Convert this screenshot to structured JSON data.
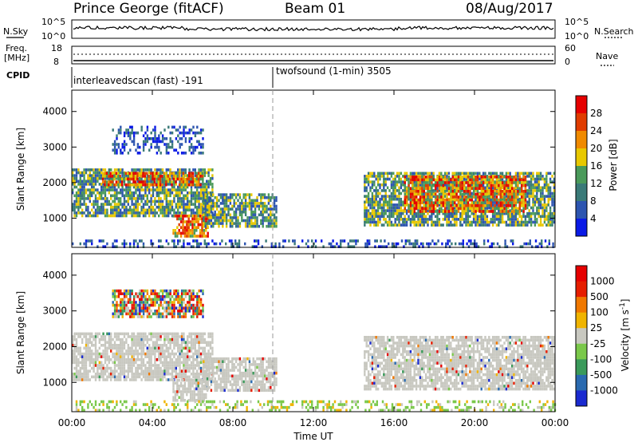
{
  "header": {
    "station": "Prince George (fitACF)",
    "beam": "Beam 01",
    "date": "08/Aug/2017"
  },
  "top_panels": {
    "nsky_label": "N.Sky",
    "nsky_ticks": [
      "10^5",
      "10^0"
    ],
    "nsearch_label": "N.Search",
    "nsearch_ticks": [
      "10^5",
      "10^0"
    ],
    "freq_label_1": "Freq.",
    "freq_label_2": "[MHz]",
    "freq_ticks": [
      "18",
      "8"
    ],
    "nave_label": "Nave",
    "nave_ticks": [
      "60",
      "0"
    ],
    "cpid_label": "CPID",
    "cpid_segments": [
      {
        "label": "interleavedscan (fast) -191",
        "start_hour": 0,
        "end_hour": 10
      },
      {
        "label": "twofsound (1-min) 3505",
        "start_hour": 10,
        "end_hour": 24
      }
    ]
  },
  "chart_data": [
    {
      "type": "heatmap",
      "name": "power",
      "ylabel": "Slant Range [km]",
      "xlabel": "",
      "xlim": [
        0,
        24
      ],
      "ylim": [
        180,
        4600
      ],
      "yticks": [
        1000,
        2000,
        3000,
        4000
      ],
      "colorbar": {
        "label": "Power [dB]",
        "ticks": [
          "4",
          "8",
          "12",
          "16",
          "20",
          "24",
          "28"
        ],
        "colors": [
          "#0a1ae6",
          "#2d55b0",
          "#3a7a78",
          "#4a9a5a",
          "#e8c800",
          "#f08a00",
          "#e03c00",
          "#e60000"
        ]
      },
      "regions": [
        {
          "t": [
            0.0,
            7.0
          ],
          "r": [
            1100,
            2400
          ],
          "level": "medium"
        },
        {
          "t": [
            1.5,
            6.5
          ],
          "r": [
            1900,
            2300
          ],
          "level": "high"
        },
        {
          "t": [
            5.0,
            6.8
          ],
          "r": [
            500,
            1100
          ],
          "level": "high"
        },
        {
          "t": [
            6.5,
            10.2
          ],
          "r": [
            800,
            1700
          ],
          "level": "medium"
        },
        {
          "t": [
            2.0,
            6.5
          ],
          "r": [
            2800,
            3600
          ],
          "level": "low"
        },
        {
          "t": [
            14.5,
            24.0
          ],
          "r": [
            800,
            2300
          ],
          "level": "medium"
        },
        {
          "t": [
            16.5,
            22.5
          ],
          "r": [
            1200,
            2200
          ],
          "level": "high"
        },
        {
          "t": [
            0.0,
            24.0
          ],
          "r": [
            180,
            400
          ],
          "level": "low"
        }
      ]
    },
    {
      "type": "heatmap",
      "name": "velocity",
      "ylabel": "Slant Range [km]",
      "xlabel": "Time UT",
      "xlim": [
        0,
        24
      ],
      "ylim": [
        180,
        4600
      ],
      "yticks": [
        1000,
        2000,
        3000,
        4000
      ],
      "xticks": [
        "00:00",
        "04:00",
        "08:00",
        "12:00",
        "16:00",
        "20:00",
        "00:00"
      ],
      "colorbar": {
        "label": "Velocity [m s^-1]",
        "ticks": [
          "1000",
          "500",
          "100",
          "25",
          "-25",
          "-100",
          "-500",
          "-1000"
        ],
        "colors": [
          "#1a2ad0",
          "#2a6ab0",
          "#3a9a5a",
          "#7ac84a",
          "#c8c8c0",
          "#f0b400",
          "#f07800",
          "#e61e00",
          "#e60000"
        ]
      },
      "regions": [
        {
          "t": [
            0.0,
            7.0
          ],
          "r": [
            1100,
            2400
          ],
          "level": "ground"
        },
        {
          "t": [
            5.0,
            6.8
          ],
          "r": [
            500,
            1100
          ],
          "level": "ground"
        },
        {
          "t": [
            6.5,
            10.2
          ],
          "r": [
            800,
            1700
          ],
          "level": "ground"
        },
        {
          "t": [
            14.5,
            24.0
          ],
          "r": [
            800,
            2300
          ],
          "level": "ground"
        },
        {
          "t": [
            2.0,
            6.5
          ],
          "r": [
            2800,
            3600
          ],
          "level": "mixed"
        },
        {
          "t": [
            0.0,
            24.0
          ],
          "r": [
            180,
            500
          ],
          "level": "green"
        }
      ]
    }
  ]
}
